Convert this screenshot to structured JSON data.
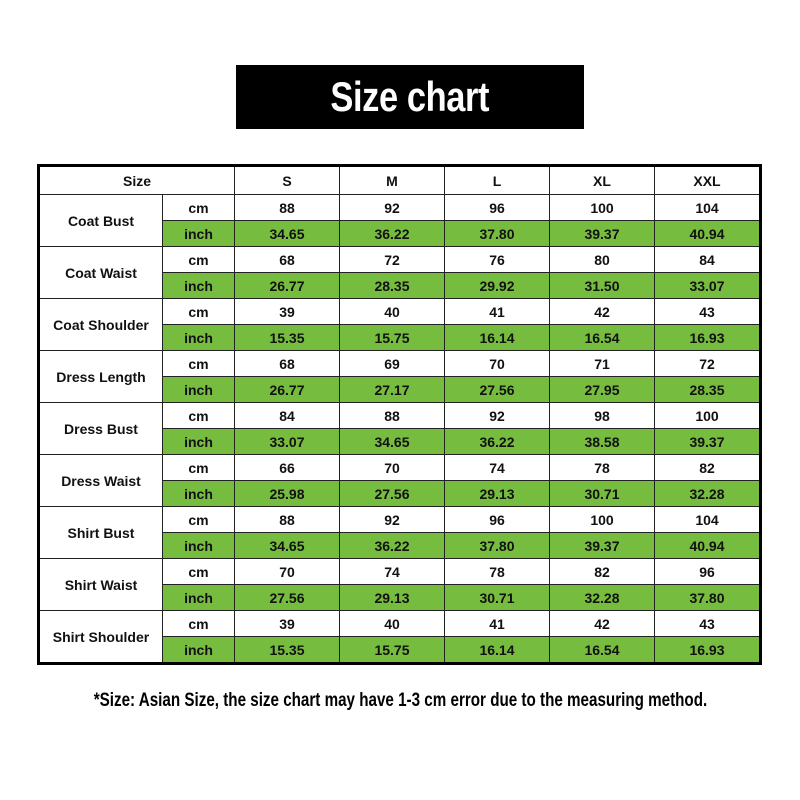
{
  "title": "Size chart",
  "colors": {
    "inch_row_background": "#76bc3f",
    "title_background": "#000000"
  },
  "table": {
    "header": {
      "size_label": "Size",
      "sizes": [
        "S",
        "M",
        "L",
        "XL",
        "XXL"
      ]
    },
    "units": {
      "cm": "cm",
      "inch": "inch"
    },
    "rows": [
      {
        "label": "Coat Bust",
        "cm": [
          "88",
          "92",
          "96",
          "100",
          "104"
        ],
        "inch": [
          "34.65",
          "36.22",
          "37.80",
          "39.37",
          "40.94"
        ]
      },
      {
        "label": "Coat Waist",
        "cm": [
          "68",
          "72",
          "76",
          "80",
          "84"
        ],
        "inch": [
          "26.77",
          "28.35",
          "29.92",
          "31.50",
          "33.07"
        ]
      },
      {
        "label": "Coat Shoulder",
        "cm": [
          "39",
          "40",
          "41",
          "42",
          "43"
        ],
        "inch": [
          "15.35",
          "15.75",
          "16.14",
          "16.54",
          "16.93"
        ]
      },
      {
        "label": "Dress Length",
        "cm": [
          "68",
          "69",
          "70",
          "71",
          "72"
        ],
        "inch": [
          "26.77",
          "27.17",
          "27.56",
          "27.95",
          "28.35"
        ]
      },
      {
        "label": "Dress Bust",
        "cm": [
          "84",
          "88",
          "92",
          "98",
          "100"
        ],
        "inch": [
          "33.07",
          "34.65",
          "36.22",
          "38.58",
          "39.37"
        ]
      },
      {
        "label": "Dress Waist",
        "cm": [
          "66",
          "70",
          "74",
          "78",
          "82"
        ],
        "inch": [
          "25.98",
          "27.56",
          "29.13",
          "30.71",
          "32.28"
        ]
      },
      {
        "label": "Shirt Bust",
        "cm": [
          "88",
          "92",
          "96",
          "100",
          "104"
        ],
        "inch": [
          "34.65",
          "36.22",
          "37.80",
          "39.37",
          "40.94"
        ]
      },
      {
        "label": "Shirt Waist",
        "cm": [
          "70",
          "74",
          "78",
          "82",
          "96"
        ],
        "inch": [
          "27.56",
          "29.13",
          "30.71",
          "32.28",
          "37.80"
        ]
      },
      {
        "label": "Shirt Shoulder",
        "cm": [
          "39",
          "40",
          "41",
          "42",
          "43"
        ],
        "inch": [
          "15.35",
          "15.75",
          "16.14",
          "16.54",
          "16.93"
        ]
      }
    ]
  },
  "footnote": "*Size: Asian Size, the size chart may have 1-3 cm error due to the measuring method."
}
